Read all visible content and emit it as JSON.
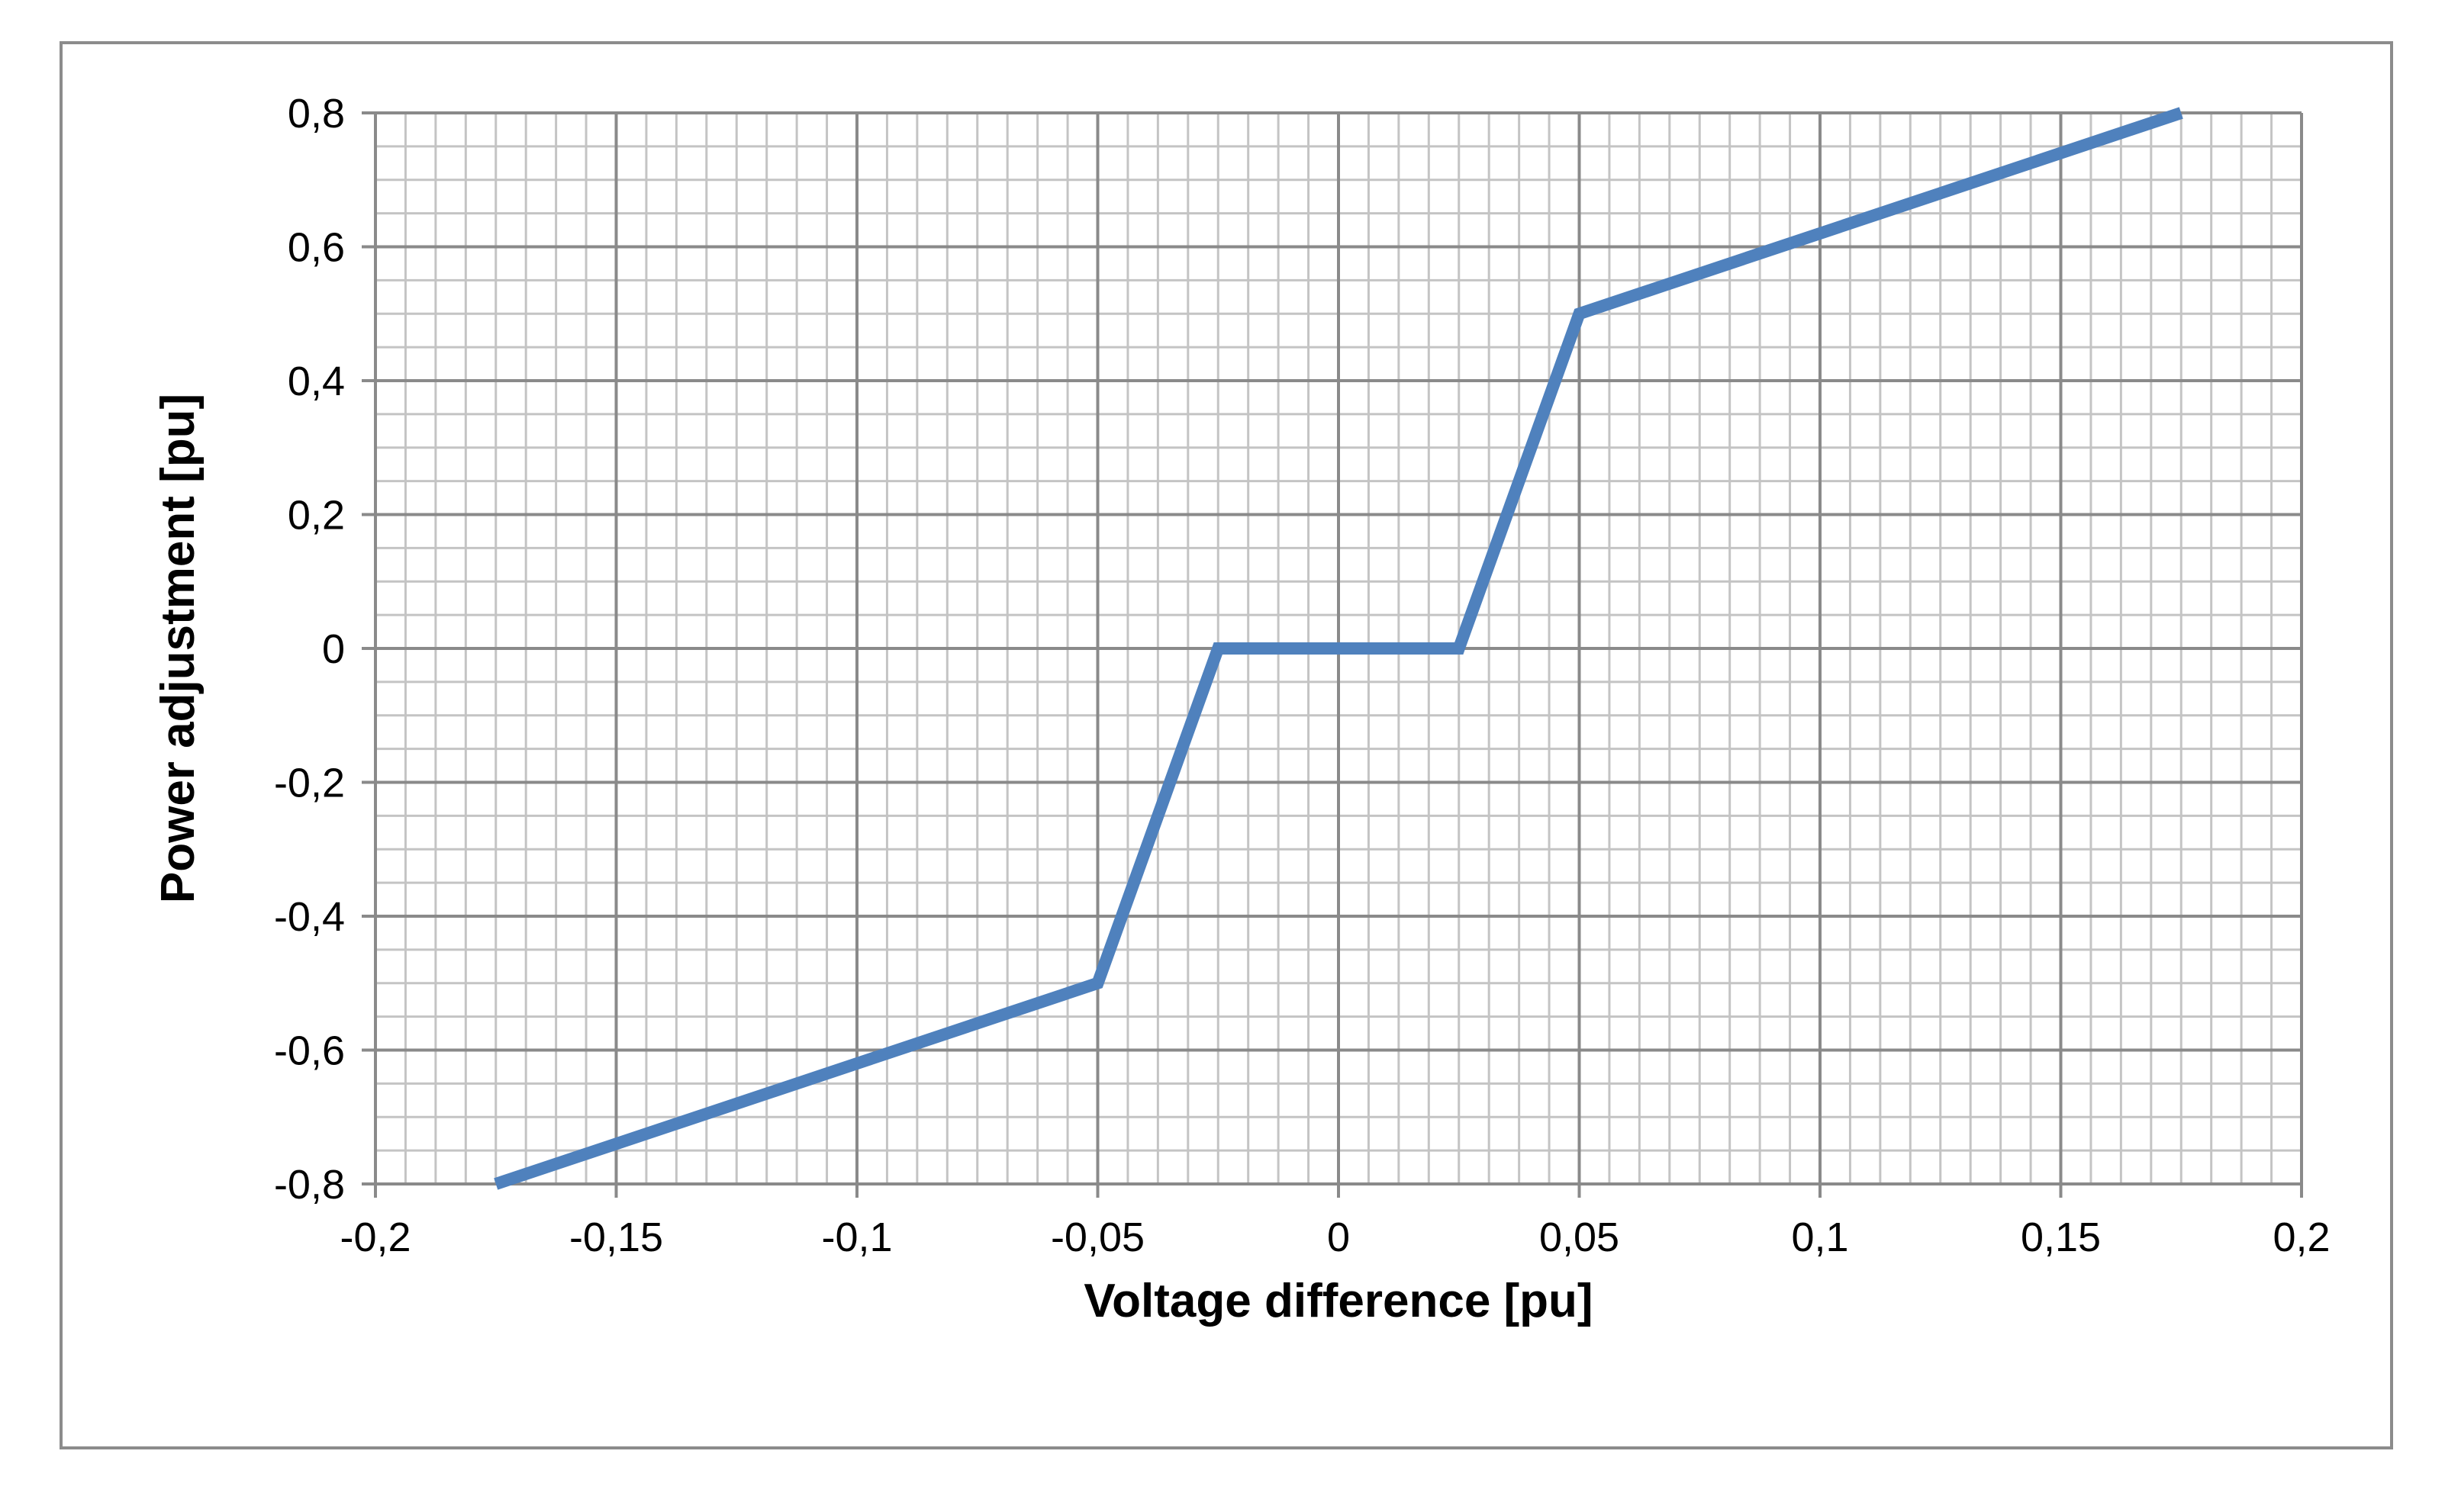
{
  "chart_data": {
    "type": "line",
    "title": "",
    "xlabel": "Voltage difference [pu]",
    "ylabel": "Power adjustment [pu]",
    "xlim": [
      -0.2,
      0.2
    ],
    "ylim": [
      -0.8,
      0.8
    ],
    "grid": true,
    "minor_grid": true,
    "x_ticks": [
      -0.2,
      -0.15,
      -0.1,
      -0.05,
      0,
      0.05,
      0.1,
      0.15,
      0.2
    ],
    "x_tick_labels": [
      "-0,2",
      "-0,15",
      "-0,1",
      "-0,05",
      "0",
      "0,05",
      "0,1",
      "0,15",
      "0,2"
    ],
    "y_ticks": [
      0.8,
      0.6,
      0.4,
      0.2,
      0,
      -0.2,
      -0.4,
      -0.6,
      -0.8
    ],
    "y_tick_labels": [
      "0,8",
      "0,6",
      "0,4",
      "0,2",
      "0",
      "-0,2",
      "-0,4",
      "-0,6",
      "-0,8"
    ],
    "series": [
      {
        "color": "#4f81bd",
        "x": [
          -0.175,
          -0.05,
          -0.025,
          0.025,
          0.05,
          0.175
        ],
        "y": [
          -0.8,
          -0.5,
          0,
          0,
          0.5,
          0.8
        ]
      }
    ]
  }
}
